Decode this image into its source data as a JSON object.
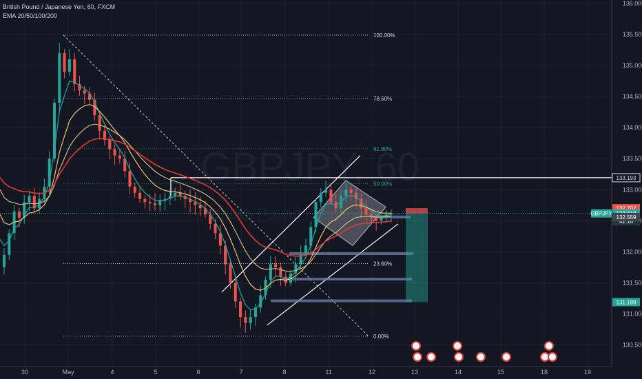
{
  "header": {
    "title": "British Pound / Japanese Yen, 60, FXCM",
    "indicators": "EMA 20/50/100/200"
  },
  "watermark": {
    "symbol": "GBPJPY, 60",
    "description": "British Pound / Japanese Yen"
  },
  "colors": {
    "background": "#131722",
    "up": "#26a69a",
    "down": "#ef5350",
    "ema20": "#26a69a",
    "ema50": "#f2c078",
    "ema100": "#d4b483",
    "ema200": "#e53935",
    "grid": "#1e222d",
    "axis_text": "#b2b5be"
  },
  "chart_data": {
    "type": "candlestick",
    "symbol": "GBPJPY",
    "timeframe": "60",
    "ylim": [
      130.25,
      136.05
    ],
    "y_ticks": [
      "136.000",
      "135.500",
      "135.000",
      "134.500",
      "134.000",
      "133.500",
      "133.000",
      "132.500",
      "132.000",
      "131.500",
      "131.000",
      "130.500"
    ],
    "x_ticks": [
      "30",
      "May",
      "4",
      "5",
      "6",
      "7",
      "8",
      "11",
      "12",
      "13",
      "14",
      "15",
      "18",
      "19"
    ],
    "fib_levels": [
      {
        "label": "100.00%",
        "price": 135.49
      },
      {
        "label": "78.60%",
        "price": 134.47
      },
      {
        "label": "61.80%",
        "price": 133.66
      },
      {
        "label": "50.00%",
        "price": 133.1
      },
      {
        "label": "23.60%",
        "price": 131.81
      },
      {
        "label": "0.00%",
        "price": 130.64
      }
    ],
    "resistance": {
      "price": 133.193
    },
    "price_labels": [
      {
        "text": "133.193",
        "price": 133.193,
        "style": "outline"
      },
      {
        "text": "132.702",
        "price": 132.702,
        "style": "red"
      },
      {
        "text": "GBPJPY",
        "price": 132.618,
        "style": "teal-name"
      },
      {
        "text": "132.618",
        "price": 132.618,
        "style": "teal"
      },
      {
        "text": "42:16",
        "price": 132.49,
        "style": "dark"
      },
      {
        "text": "132.559",
        "price": 132.559,
        "style": "gray"
      },
      {
        "text": "131.189",
        "price": 131.189,
        "style": "teal"
      }
    ],
    "position": {
      "entry": 132.618,
      "stop": 132.702,
      "target": 131.189
    },
    "support_levels": [
      132.56,
      131.97,
      131.56,
      131.21
    ],
    "closes": [
      131.95,
      132.3,
      132.65,
      132.55,
      132.8,
      132.9,
      132.7,
      132.85,
      133.05,
      133.5,
      134.4,
      135.2,
      134.9,
      135.1,
      134.7,
      134.6,
      134.55,
      134.45,
      134.2,
      133.95,
      133.8,
      133.65,
      133.55,
      133.5,
      133.3,
      133.05,
      132.95,
      132.85,
      132.8,
      132.78,
      132.75,
      132.82,
      132.85,
      132.9,
      132.95,
      132.9,
      132.85,
      132.8,
      132.75,
      132.7,
      132.6,
      132.45,
      132.3,
      132.1,
      131.8,
      131.5,
      131.2,
      130.95,
      130.85,
      130.95,
      131.1,
      131.3,
      131.55,
      131.8,
      131.75,
      131.6,
      131.5,
      131.65,
      131.8,
      131.95,
      132.1,
      132.4,
      132.8,
      132.95,
      133.0,
      132.8,
      132.7,
      132.9,
      133.0,
      132.95,
      132.85,
      132.7,
      132.6,
      132.55,
      132.5,
      132.55,
      132.6,
      132.62
    ]
  }
}
